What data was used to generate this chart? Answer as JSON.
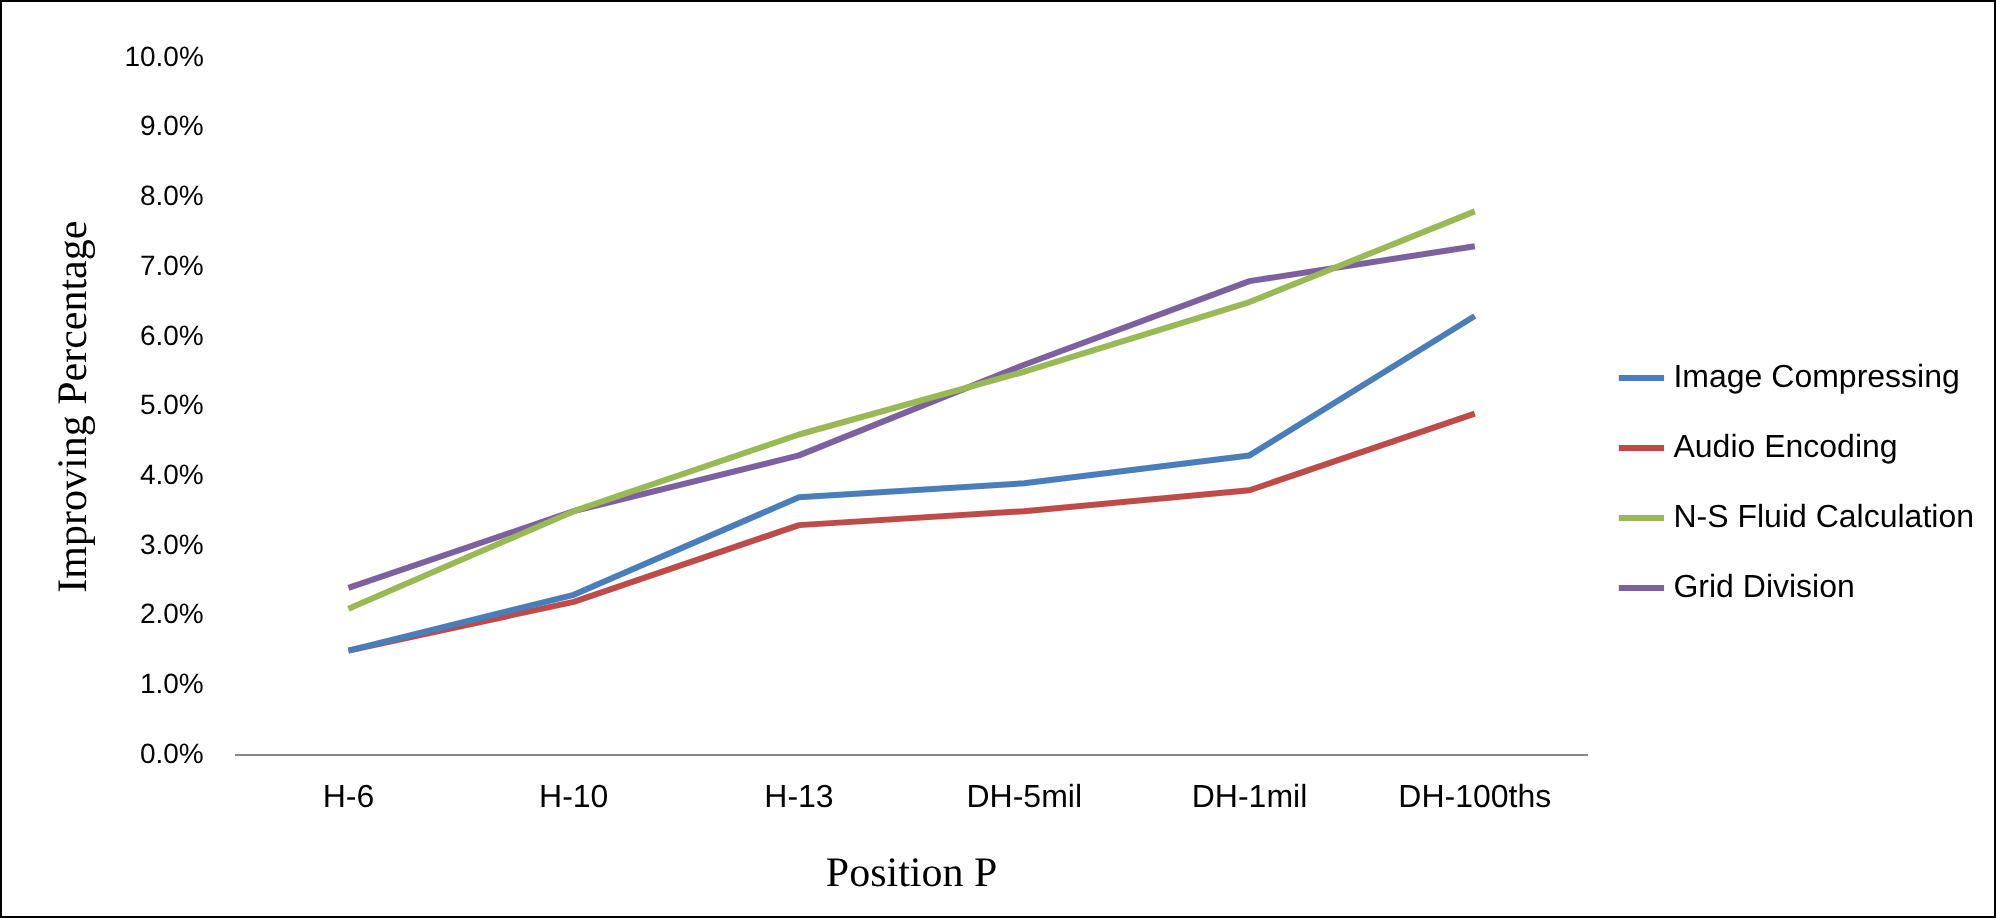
{
  "chart_data": {
    "type": "line",
    "xlabel": "Position P",
    "ylabel": "Improving Percentage",
    "categories": [
      "H-6",
      "H-10",
      "H-13",
      "DH-5mil",
      "DH-1mil",
      "DH-100ths"
    ],
    "series": [
      {
        "name": "Image Compressing",
        "color": "#4a7ebb",
        "values": [
          1.5,
          2.3,
          3.7,
          3.9,
          4.3,
          6.3
        ]
      },
      {
        "name": "Audio Encoding",
        "color": "#be4b48",
        "values": [
          1.5,
          2.2,
          3.3,
          3.5,
          3.8,
          4.9
        ]
      },
      {
        "name": "N-S Fluid Calculation",
        "color": "#98b954",
        "values": [
          2.1,
          3.5,
          4.6,
          5.5,
          6.5,
          7.8
        ]
      },
      {
        "name": "Grid Division",
        "color": "#7d60a0",
        "values": [
          2.4,
          3.5,
          4.3,
          5.6,
          6.8,
          7.3
        ]
      }
    ],
    "ylim": [
      0,
      10
    ],
    "yticks": [
      {
        "value": 0,
        "label": "0.0%"
      },
      {
        "value": 1,
        "label": "1.0%"
      },
      {
        "value": 2,
        "label": "2.0%"
      },
      {
        "value": 3,
        "label": "3.0%"
      },
      {
        "value": 4,
        "label": "4.0%"
      },
      {
        "value": 5,
        "label": "5.0%"
      },
      {
        "value": 6,
        "label": "6.0%"
      },
      {
        "value": 7,
        "label": "7.0%"
      },
      {
        "value": 8,
        "label": "8.0%"
      },
      {
        "value": 9,
        "label": "9.0%"
      },
      {
        "value": 10,
        "label": "10.0%"
      }
    ],
    "grid": false,
    "legend": "right",
    "marker": "none",
    "line_style": "solid"
  }
}
